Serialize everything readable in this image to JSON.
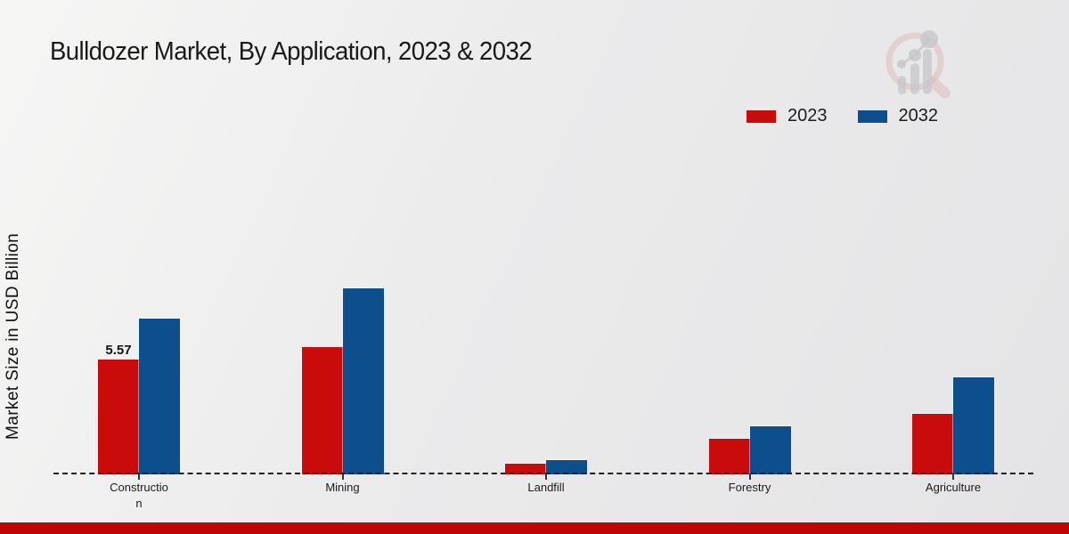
{
  "header": {
    "title": "Bulldozer Market, By Application, 2023 & 2032"
  },
  "y_axis": {
    "label": "Market Size in USD Billion"
  },
  "legend": {
    "items": [
      {
        "label": "2023",
        "color": "#c80b0b"
      },
      {
        "label": "2032",
        "color": "#0d4f8c"
      }
    ]
  },
  "footer": {
    "band_color": "#c00505"
  },
  "watermark": {
    "name": "magnifier-bar-chart-watermark"
  },
  "chart_data": {
    "type": "bar",
    "title": "Bulldozer Market, By Application, 2023 & 2032",
    "xlabel": "",
    "ylabel": "Market Size in USD Billion",
    "categories": [
      "Construction",
      "Mining",
      "Landfill",
      "Forestry",
      "Agriculture"
    ],
    "category_display_lines": [
      [
        "Constructio",
        "n"
      ],
      [
        "Mining"
      ],
      [
        "Landfill"
      ],
      [
        "Forestry"
      ],
      [
        "Agriculture"
      ]
    ],
    "series": [
      {
        "name": "2023",
        "color": "#c80b0b",
        "values": [
          5.57,
          6.17,
          0.52,
          1.73,
          2.94
        ],
        "point_labels": [
          "5.57",
          null,
          null,
          null,
          null
        ]
      },
      {
        "name": "2032",
        "color": "#0d4f8c",
        "values": [
          7.56,
          9.02,
          0.69,
          2.33,
          4.71
        ],
        "point_labels": [
          null,
          null,
          null,
          null,
          null
        ]
      }
    ],
    "legend_position": "top-right",
    "grid": false,
    "baseline_style": "dashed",
    "ylim": [
      0,
      9.5
    ]
  }
}
